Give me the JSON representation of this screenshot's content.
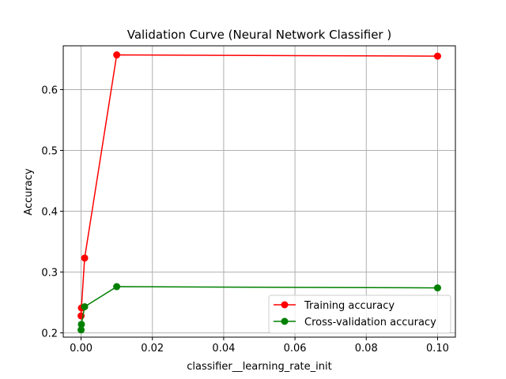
{
  "chart_data": {
    "type": "line",
    "title": "Validation Curve (Neural Network Classifier )",
    "xlabel": "classifier__learning_rate_init",
    "ylabel": "Accuracy",
    "xlim": [
      -0.005,
      0.105
    ],
    "ylim": [
      0.193,
      0.672
    ],
    "xticks": [
      0.0,
      0.02,
      0.04,
      0.06,
      0.08,
      0.1
    ],
    "xtick_labels": [
      "0.00",
      "0.02",
      "0.04",
      "0.06",
      "0.08",
      "0.10"
    ],
    "yticks": [
      0.2,
      0.3,
      0.4,
      0.5,
      0.6
    ],
    "ytick_labels": [
      "0.2",
      "0.3",
      "0.4",
      "0.5",
      "0.6"
    ],
    "grid": true,
    "legend_position": "lower-right",
    "x": [
      1e-05,
      0.0001,
      0.001,
      0.01,
      0.1
    ],
    "series": [
      {
        "name": "Training accuracy",
        "color": "#ff0000",
        "values": [
          0.228,
          0.241,
          0.323,
          0.657,
          0.655
        ]
      },
      {
        "name": "Cross-validation accuracy",
        "color": "#008000",
        "values": [
          0.205,
          0.214,
          0.243,
          0.276,
          0.274
        ]
      }
    ]
  }
}
